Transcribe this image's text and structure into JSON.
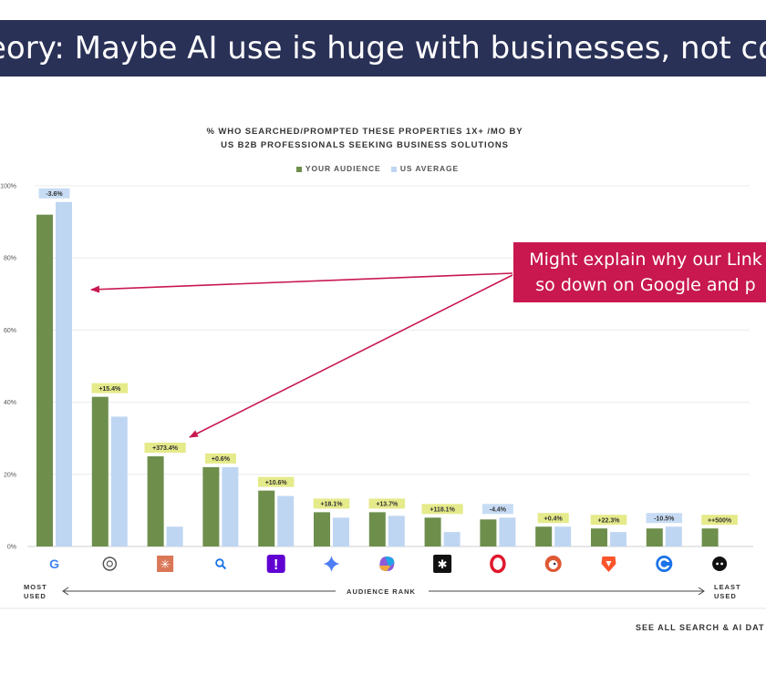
{
  "slide": {
    "title": "eory: Maybe AI use is huge with businesses, not co",
    "callout": {
      "line1": "Might explain why our Link",
      "line2": "so down on Google and p"
    },
    "footer_link": "SEE ALL SEARCH & AI DAT"
  },
  "colors": {
    "banner": "#2a3157",
    "your_audience": "#6e8f4c",
    "us_average": "#bfd6f2",
    "callout": "#c8184f",
    "label_green": "#e5ea8a",
    "label_blue": "#c7dcf4"
  },
  "chart_data": {
    "type": "bar",
    "title_line1": "% WHO SEARCHED/PROMPTED THESE PROPERTIES 1X+ /MO BY",
    "title_line2": "US B2B PROFESSIONALS SEEKING BUSINESS SOLUTIONS",
    "legend": [
      "YOUR AUDIENCE",
      "US AVERAGE"
    ],
    "legend_position": "top",
    "ylim": [
      0,
      100
    ],
    "y_ticks": [
      "0%",
      "20%",
      "40%",
      "60%",
      "80%",
      "100%"
    ],
    "categories": [
      "Google",
      "ChatGPT",
      "Claude",
      "Bing",
      "Yahoo",
      "Gemini",
      "Copilot",
      "Perplexity",
      "Opera",
      "DuckDuckGo",
      "Brave",
      "Ecosia",
      "Meta AI"
    ],
    "icons": [
      "google-icon",
      "chatgpt-icon",
      "claude-icon",
      "search-icon",
      "yahoo-icon",
      "gemini-icon",
      "copilot-icon",
      "perplexity-icon",
      "opera-icon",
      "duckduckgo-icon",
      "brave-icon",
      "ecosia-icon",
      "meta-ai-icon"
    ],
    "series": [
      {
        "name": "YOUR AUDIENCE",
        "values": [
          92,
          41.5,
          25,
          22,
          15.5,
          9.5,
          9.5,
          8,
          7.5,
          5.5,
          5,
          5,
          5
        ]
      },
      {
        "name": "US AVERAGE",
        "values": [
          95.5,
          36,
          5.5,
          22,
          14,
          8,
          8.5,
          4,
          8,
          5.5,
          4,
          5.5,
          0
        ]
      }
    ],
    "data_labels": [
      "-3.6%",
      "+15.4%",
      "+373.4%",
      "+0.6%",
      "+10.6%",
      "+18.1%",
      "+13.7%",
      "+118.1%",
      "-4.4%",
      "+0.4%",
      "+22.3%",
      "-10.5%",
      "++500%"
    ],
    "data_label_colors": [
      "blue",
      "green",
      "green",
      "green",
      "green",
      "green",
      "green",
      "green",
      "blue",
      "green",
      "green",
      "blue",
      "green"
    ],
    "x_axis": {
      "left": "MOST USED",
      "center": "AUDIENCE RANK",
      "right": "LEAST USED"
    }
  }
}
